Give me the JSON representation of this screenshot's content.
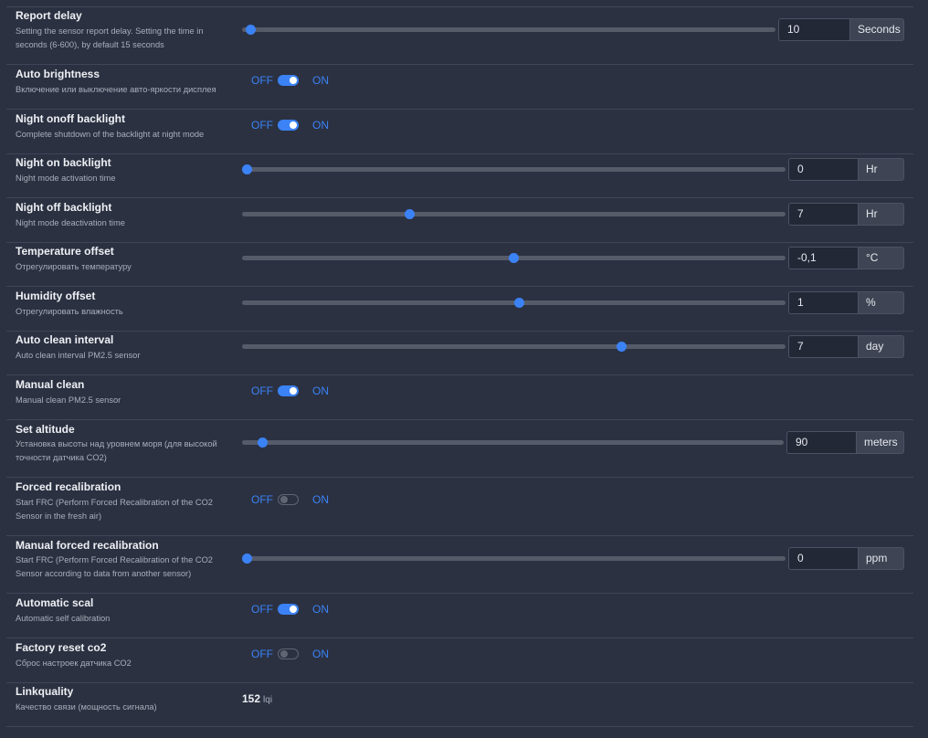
{
  "settings": [
    {
      "title": "Report delay",
      "desc": "Setting the sensor report delay. Setting the time in seconds (6-600), by default 15 seconds",
      "type": "slider",
      "min": 6,
      "max": 600,
      "value": 10,
      "value_text": "10",
      "unit": "Seconds"
    },
    {
      "title": "Auto brightness",
      "desc": "Включение или выключение авто-яркости дисплея",
      "type": "toggle",
      "state": true
    },
    {
      "title": "Night onoff backlight",
      "desc": "Complete shutdown of the backlight at night mode",
      "type": "toggle",
      "state": true
    },
    {
      "title": "Night on backlight",
      "desc": "Night mode activation time",
      "type": "slider",
      "min": 0,
      "max": 23,
      "value": 0,
      "value_text": "0",
      "unit": "Hr"
    },
    {
      "title": "Night off backlight",
      "desc": "Night mode deactivation time",
      "type": "slider",
      "min": 0,
      "max": 23,
      "value": 7,
      "value_text": "7",
      "unit": "Hr"
    },
    {
      "title": "Temperature offset",
      "desc": "Отрегулировать температуру",
      "type": "slider",
      "min": -50,
      "max": 50,
      "value": -0.1,
      "value_text": "-0,1",
      "unit": "°C"
    },
    {
      "title": "Humidity offset",
      "desc": "Отрегулировать влажность",
      "type": "slider",
      "min": -50,
      "max": 50,
      "value": 1,
      "value_text": "1",
      "unit": "%"
    },
    {
      "title": "Auto clean interval",
      "desc": "Auto clean interval PM2.5 sensor",
      "type": "slider",
      "min": 0,
      "max": 10,
      "value": 7,
      "value_text": "7",
      "unit": "day"
    },
    {
      "title": "Manual clean",
      "desc": "Manual clean PM2.5 sensor",
      "type": "toggle",
      "state": true
    },
    {
      "title": "Set altitude",
      "desc": "Установка высоты над уровнем моря (для высокой точности датчика CO2)",
      "type": "slider",
      "min": 0,
      "max": 3000,
      "value": 90,
      "value_text": "90",
      "unit": "meters"
    },
    {
      "title": "Forced recalibration",
      "desc": "Start FRC (Perform Forced Recalibration of the CO2 Sensor in the fresh air)",
      "type": "toggle",
      "state": false
    },
    {
      "title": "Manual forced recalibration",
      "desc": "Start FRC (Perform Forced Recalibration of the CO2 Sensor according to data from another sensor)",
      "type": "slider",
      "min": 0,
      "max": 5000,
      "value": 0,
      "value_text": "0",
      "unit": "ppm"
    },
    {
      "title": "Automatic scal",
      "desc": "Automatic self calibration",
      "type": "toggle",
      "state": true
    },
    {
      "title": "Factory reset co2",
      "desc": "Сброс настроек датчика CO2",
      "type": "toggle",
      "state": false
    },
    {
      "title": "Linkquality",
      "desc": "Качество связи (мощность сигнала)",
      "type": "readout",
      "value_text": "152",
      "unit": "lqi"
    }
  ],
  "toggle_labels": {
    "off": "OFF",
    "on": "ON"
  },
  "colors": {
    "accent": "#3b82f6",
    "background": "#2b3141",
    "divider": "#3f4658"
  }
}
